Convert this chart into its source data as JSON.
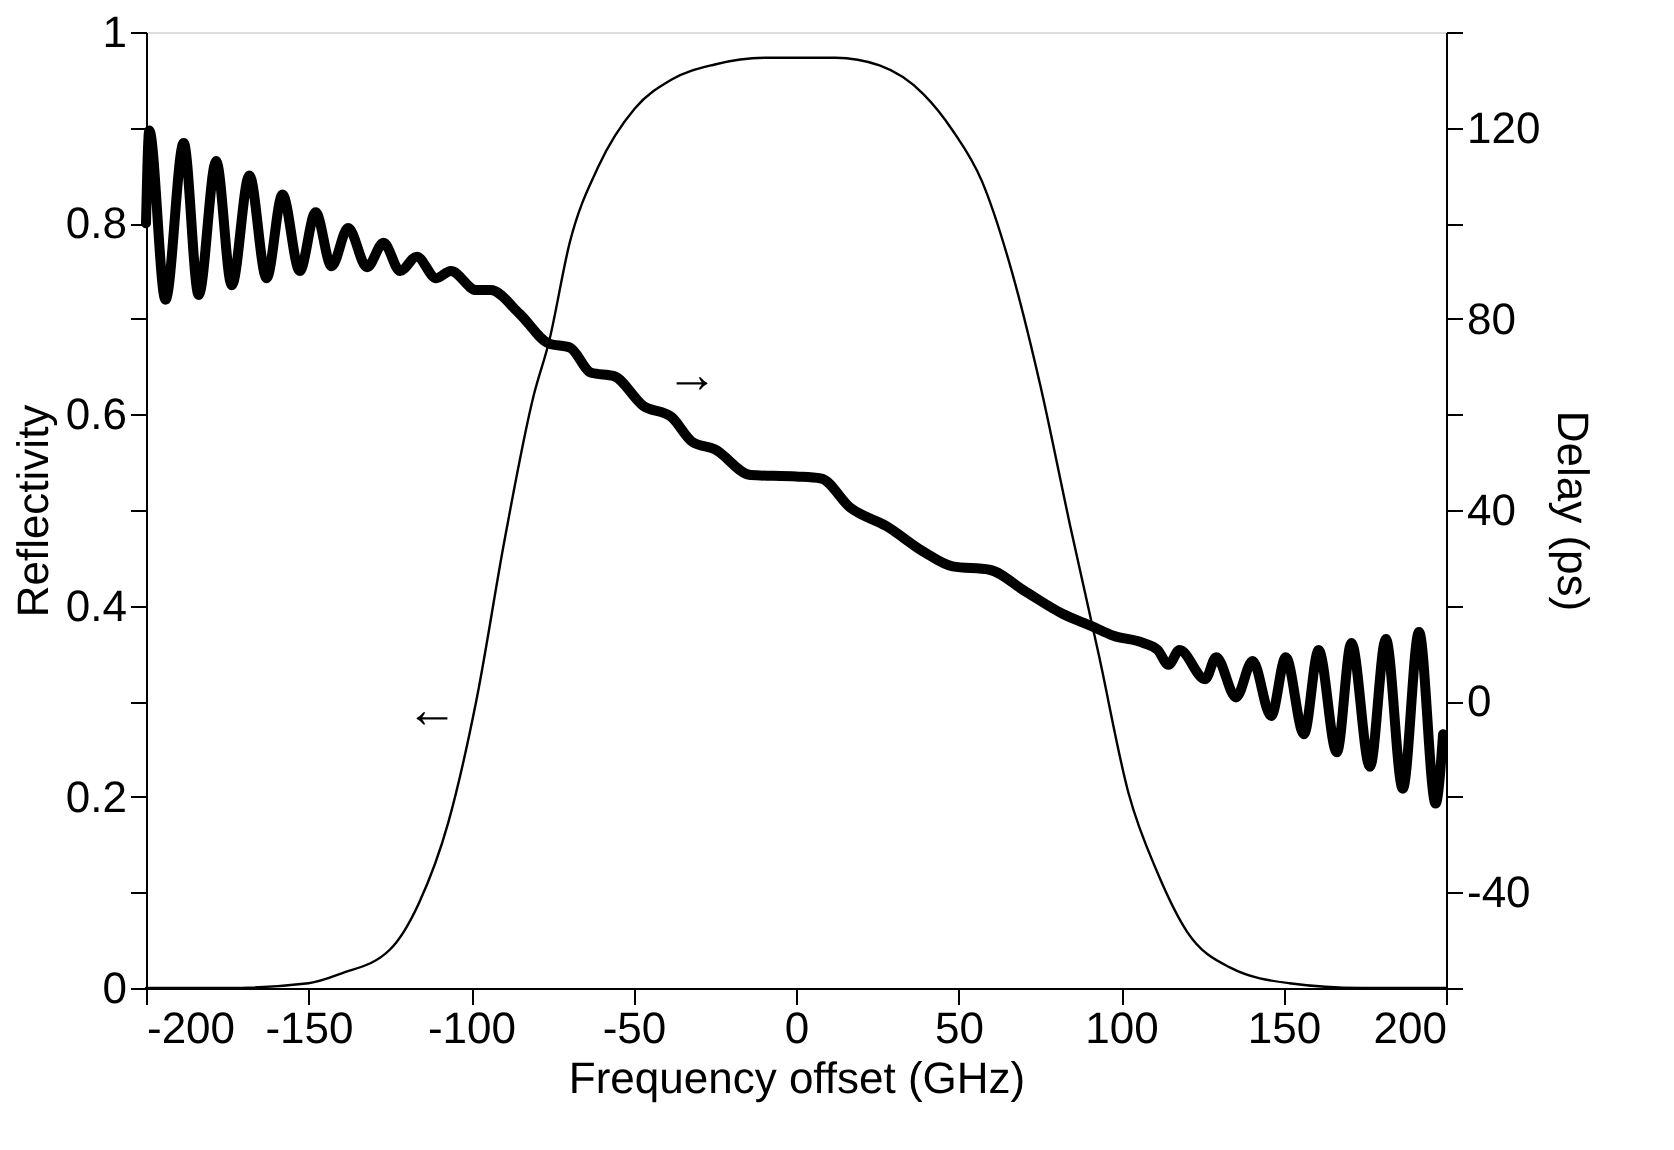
{
  "chart_data": {
    "type": "line",
    "xlabel": "Frequency offset (GHz)",
    "ylabel": "Reflectivity",
    "y2label": "Delay (ps)",
    "xlim": [
      -200,
      200
    ],
    "xticks": [
      -200,
      -150,
      -100,
      -50,
      0,
      50,
      100,
      150,
      200
    ],
    "ylim": [
      0,
      1
    ],
    "yticks": [
      0,
      {
        "value": 0.1,
        "label": null
      },
      0.2,
      {
        "value": 0.3,
        "label": null
      },
      0.4,
      {
        "value": 0.5,
        "label": null
      },
      0.6,
      {
        "value": 0.7,
        "label": null
      },
      0.8,
      {
        "value": 0.9,
        "label": null
      },
      1
    ],
    "y2lim": [
      -60,
      140
    ],
    "y2ticks": [
      {
        "value": -60,
        "label": null
      },
      -40,
      {
        "value": -20,
        "label": null
      },
      0,
      {
        "value": 20,
        "label": null
      },
      40,
      {
        "value": 60,
        "label": null
      },
      80,
      {
        "value": 100,
        "label": null
      },
      120,
      {
        "value": 140,
        "label": null
      }
    ],
    "grid": false,
    "marker": "none",
    "line_style": "solid",
    "series": [
      {
        "color": "#000000",
        "x": [
          -200,
          -175,
          -150,
          -140,
          -125,
          -116,
          -107,
          -98.4,
          -89.6,
          -80.7,
          -76,
          -69.6,
          -60.7,
          -49.6,
          -38.4,
          -25,
          -9.6,
          12.2,
          25.7,
          39.2,
          48.2,
          57.2,
          66.2,
          75.2,
          84.2,
          93.2,
          102.3,
          111.3,
          120.3,
          133.8,
          151.8,
          174,
          200
        ],
        "values": [
          0,
          0,
          0.005,
          0.015,
          0.04,
          0.089,
          0.173,
          0.3,
          0.47,
          0.62,
          0.676,
          0.78,
          0.86,
          0.92,
          0.95,
          0.966,
          0.973,
          0.973,
          0.965,
          0.935,
          0.897,
          0.844,
          0.752,
          0.63,
          0.486,
          0.348,
          0.204,
          0.12,
          0.059,
          0.021,
          0.005,
          0,
          0
        ]
      },
      {
        "color": "#000000",
        "axis": "y2",
        "x": [
          -200,
          -199,
          -194,
          -188.4,
          -183.8,
          -178.4,
          -173.6,
          -168.2,
          -162.9,
          -158,
          -152.7,
          -147.8,
          -142.9,
          -137.8,
          -132,
          -126.9,
          -121.8,
          -116.7,
          -110.7,
          -106.2,
          -98.4,
          -94,
          -85,
          -76,
          -69.6,
          -63,
          -56,
          -47,
          -38.4,
          -31.8,
          -25,
          -14,
          0,
          7.7,
          16.7,
          27.9,
          39.2,
          48.2,
          59.5,
          70.7,
          82,
          91,
          97.7,
          106.8,
          111.3,
          114.6,
          118,
          125.9,
          129.3,
          135.4,
          140.5,
          146.2,
          150.7,
          156.3,
          160.8,
          166.4,
          170.9,
          176.6,
          181.5,
          186.7,
          191.7,
          196.8,
          199.1
        ],
        "values": [
          100,
          119.4,
          84,
          116.8,
          85,
          113,
          87,
          110,
          88.5,
          106,
          90,
          102.3,
          91,
          99,
          90.8,
          95.9,
          90,
          93,
          88.5,
          90,
          86,
          86,
          81,
          74.8,
          74,
          68.7,
          68,
          61.8,
          59.5,
          54.2,
          52.7,
          47.3,
          47,
          46.6,
          40.5,
          36.6,
          31.3,
          28.2,
          27.5,
          22.9,
          18.3,
          15.7,
          13.7,
          12.2,
          10.7,
          7.6,
          10.7,
          4.6,
          9.2,
          0.8,
          8.4,
          -3.1,
          9.2,
          -6.9,
          10.7,
          -10.7,
          12.2,
          -13.7,
          13,
          -18.3,
          14.5,
          -21.4,
          -6.9
        ]
      }
    ],
    "annotations": [
      "→",
      "←"
    ]
  }
}
